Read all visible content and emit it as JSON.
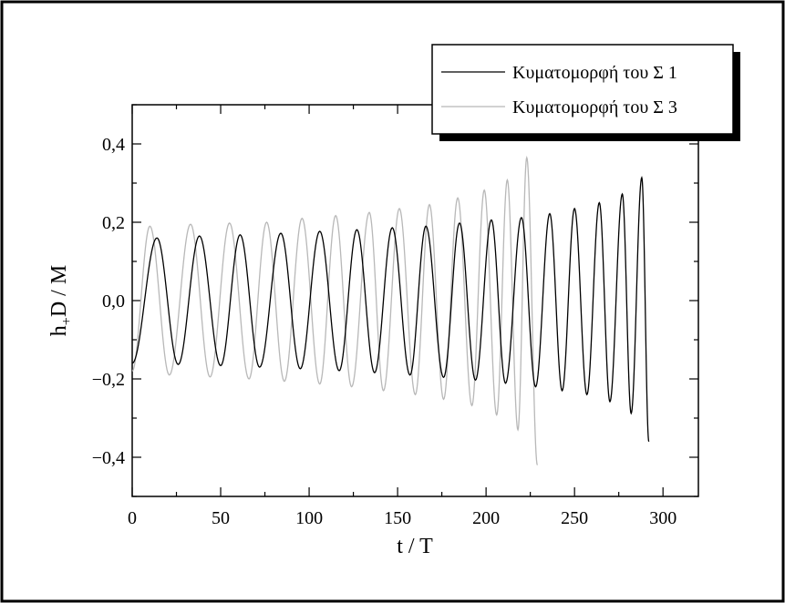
{
  "chart_data": {
    "type": "line",
    "xlabel": "t / T",
    "ylabel_main": "h",
    "ylabel_sub": "+",
    "ylabel_rest": "D / M",
    "xlim": [
      0,
      320
    ],
    "ylim": [
      -0.5,
      0.5
    ],
    "xticks": [
      0,
      50,
      100,
      150,
      200,
      250,
      300
    ],
    "xtick_labels": [
      "0",
      "50",
      "100",
      "150",
      "200",
      "250",
      "300"
    ],
    "yticks": [
      -0.4,
      -0.2,
      0.0,
      0.2,
      0.4
    ],
    "ytick_labels": [
      "−0,4",
      "−0,2",
      "0,0",
      "0,2",
      "0,4"
    ],
    "grid": false,
    "legend_position": "top-right",
    "series": [
      {
        "name": "Κυματομορφή του Σ 1",
        "color": "#000000",
        "t_end": 292,
        "start_value": -0.16,
        "end_value": -0.36,
        "peaks": [
          {
            "t": 14,
            "v": 0.16
          },
          {
            "t": 38,
            "v": 0.165
          },
          {
            "t": 61,
            "v": 0.168
          },
          {
            "t": 84,
            "v": 0.172
          },
          {
            "t": 106,
            "v": 0.177
          },
          {
            "t": 127,
            "v": 0.181
          },
          {
            "t": 147,
            "v": 0.186
          },
          {
            "t": 166,
            "v": 0.19
          },
          {
            "t": 185,
            "v": 0.198
          },
          {
            "t": 203,
            "v": 0.206
          },
          {
            "t": 220,
            "v": 0.212
          },
          {
            "t": 236,
            "v": 0.222
          },
          {
            "t": 250,
            "v": 0.235
          },
          {
            "t": 264,
            "v": 0.25
          },
          {
            "t": 277,
            "v": 0.272
          },
          {
            "t": 288,
            "v": 0.314
          }
        ],
        "troughs": [
          {
            "t": 26,
            "v": -0.163
          },
          {
            "t": 50,
            "v": -0.166
          },
          {
            "t": 72,
            "v": -0.17
          },
          {
            "t": 95,
            "v": -0.174
          },
          {
            "t": 117,
            "v": -0.179
          },
          {
            "t": 137,
            "v": -0.184
          },
          {
            "t": 157,
            "v": -0.19
          },
          {
            "t": 176,
            "v": -0.196
          },
          {
            "t": 194,
            "v": -0.203
          },
          {
            "t": 211,
            "v": -0.211
          },
          {
            "t": 228,
            "v": -0.22
          },
          {
            "t": 243,
            "v": -0.23
          },
          {
            "t": 257,
            "v": -0.24
          },
          {
            "t": 270,
            "v": -0.258
          },
          {
            "t": 282,
            "v": -0.288
          }
        ]
      },
      {
        "name": "Κυματομορφή του Σ 3",
        "color": "#b8b8b8",
        "t_end": 229,
        "start_value": -0.18,
        "end_value": -0.42,
        "peaks": [
          {
            "t": 10,
            "v": 0.19
          },
          {
            "t": 33,
            "v": 0.195
          },
          {
            "t": 55,
            "v": 0.198
          },
          {
            "t": 76,
            "v": 0.2
          },
          {
            "t": 96,
            "v": 0.21
          },
          {
            "t": 115,
            "v": 0.217
          },
          {
            "t": 134,
            "v": 0.225
          },
          {
            "t": 151,
            "v": 0.235
          },
          {
            "t": 168,
            "v": 0.245
          },
          {
            "t": 184,
            "v": 0.262
          },
          {
            "t": 199,
            "v": 0.282
          },
          {
            "t": 212,
            "v": 0.308
          },
          {
            "t": 223,
            "v": 0.365
          }
        ],
        "troughs": [
          {
            "t": 21,
            "v": -0.19
          },
          {
            "t": 44,
            "v": -0.195
          },
          {
            "t": 66,
            "v": -0.2
          },
          {
            "t": 86,
            "v": -0.206
          },
          {
            "t": 106,
            "v": -0.213
          },
          {
            "t": 124,
            "v": -0.22
          },
          {
            "t": 142,
            "v": -0.23
          },
          {
            "t": 160,
            "v": -0.24
          },
          {
            "t": 176,
            "v": -0.252
          },
          {
            "t": 192,
            "v": -0.268
          },
          {
            "t": 206,
            "v": -0.292
          },
          {
            "t": 218,
            "v": -0.33
          }
        ]
      }
    ]
  }
}
